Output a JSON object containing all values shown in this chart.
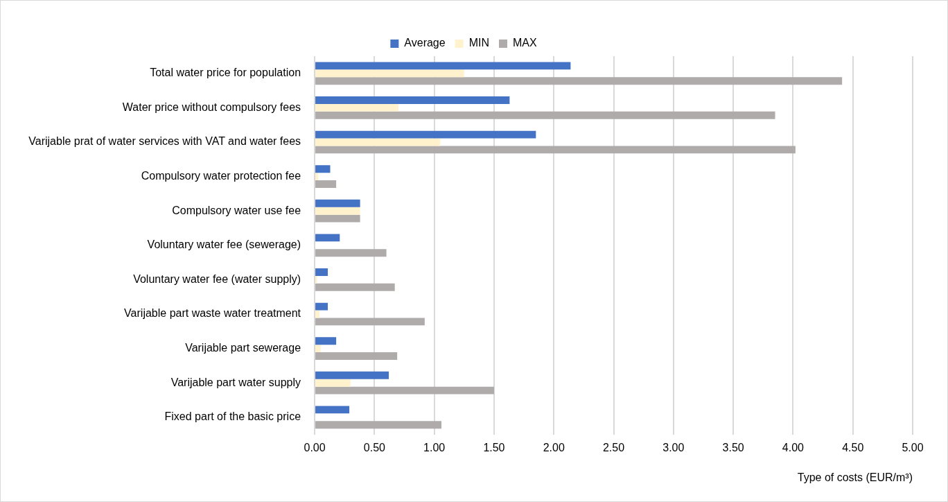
{
  "chart_data": {
    "type": "bar",
    "orientation": "horizontal",
    "xlabel": "Type of costs (EUR/m³)",
    "categories": [
      "Total water price for population",
      "Water price without compulsory fees",
      "Varijable prat of water services with VAT and water fees",
      "Compulsory water protection fee",
      "Compulsory water use fee",
      "Voluntary water fee (sewerage)",
      "Voluntary water fee (water supply)",
      "Varijable part waste water treatment",
      "Varijable part sewerage",
      "Varijable part water supply",
      "Fixed part of the basic price"
    ],
    "series": [
      {
        "name": "Average",
        "color": "#4472c4",
        "values": [
          2.14,
          1.63,
          1.85,
          0.13,
          0.38,
          0.21,
          0.11,
          0.11,
          0.18,
          0.62,
          0.29
        ]
      },
      {
        "name": "MIN",
        "color": "#fff2cc",
        "values": [
          1.25,
          0.7,
          1.05,
          0.03,
          0.38,
          null,
          0.02,
          0.04,
          0.05,
          0.3,
          0
        ]
      },
      {
        "name": "MAX",
        "color": "#afabab",
        "values": [
          4.41,
          3.85,
          4.02,
          0.18,
          0.38,
          0.6,
          0.67,
          0.92,
          0.69,
          1.5,
          1.06
        ]
      }
    ],
    "xlim": [
      0,
      5
    ],
    "xticks": [
      {
        "value": 0,
        "label": "0.00"
      },
      {
        "value": 0.5,
        "label": "0.50"
      },
      {
        "value": 1,
        "label": "1.00"
      },
      {
        "value": 1.5,
        "label": "1.50"
      },
      {
        "value": 2,
        "label": "2.00"
      },
      {
        "value": 2.5,
        "label": "2.50"
      },
      {
        "value": 3,
        "label": "3.00"
      },
      {
        "value": 3.5,
        "label": "3.50"
      },
      {
        "value": 4,
        "label": "4.00"
      },
      {
        "value": 4.5,
        "label": "4.50"
      },
      {
        "value": 5,
        "label": "5.00"
      }
    ],
    "grid": "x",
    "legend": "top"
  }
}
